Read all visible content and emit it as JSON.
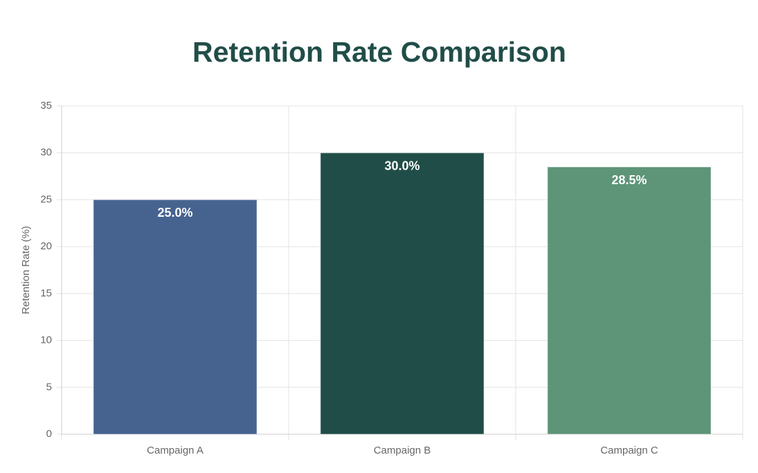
{
  "chart_data": {
    "type": "bar",
    "title": "Retention Rate Comparison",
    "y_label": "Retention Rate (%)",
    "categories": [
      "Campaign A",
      "Campaign B",
      "Campaign C"
    ],
    "values": [
      25.0,
      30.0,
      28.5
    ],
    "value_labels": [
      "25.0%",
      "30.0%",
      "28.5%"
    ],
    "colors": [
      "#46638f",
      "#214d48",
      "#5e9478"
    ],
    "ylim": [
      0,
      35
    ],
    "yticks": [
      0,
      5,
      10,
      15,
      20,
      25,
      30,
      35
    ],
    "grid": true
  }
}
